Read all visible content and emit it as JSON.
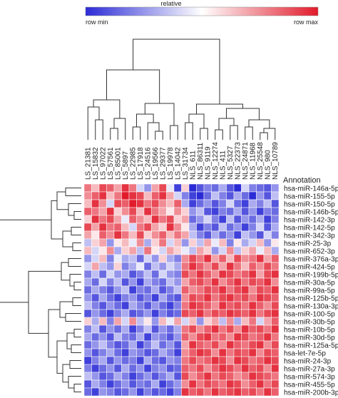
{
  "colorbar": {
    "title": "relative",
    "min_label": "row min",
    "max_label": "row max",
    "low_color": "#2b2bd6",
    "mid_color": "#ffffff",
    "high_color": "#e11b2b"
  },
  "chart_data": {
    "type": "heatmap",
    "title": "",
    "annotation_label": "Annotation",
    "columns": [
      "LS_21381",
      "LS_15832",
      "LS_97022",
      "LS_57561",
      "LS_85001",
      "LS_5897",
      "LS_22985",
      "LS_17918",
      "LS_24516",
      "LS_19566",
      "LS_29377",
      "LS_19978",
      "LS_14042",
      "LS_31734",
      "NLS_611",
      "NLS_86311",
      "NLS_9119",
      "NLS_12274",
      "NLS_411",
      "NLS_5327",
      "NLS_22373",
      "NLS_24871",
      "NLS_11968",
      "NLS_25548",
      "NLS_980",
      "NLS_10789"
    ],
    "rows": [
      "hsa-miR-146a-5p",
      "hsa-miR-155-5p",
      "hsa-miR-150-5p",
      "hsa-miR-146b-5p",
      "hsa-miR-142-3p",
      "hsa-miR-142-5p",
      "hsa-miR-342-3p",
      "hsa-miR-25-3p",
      "hsa-miR-652-3p",
      "hsa-miR-376a-3p",
      "hsa-miR-424-5p",
      "hsa-miR-199b-5p",
      "hsa-miR-30a-5p",
      "hsa-miR-99a-5p",
      "hsa-miR-125b-5p",
      "hsa-miR-130a-3p",
      "hsa-miR-100-5p",
      "hsa-miR-30b-5p",
      "hsa-miR-10b-5p",
      "hsa-miR-30d-5p",
      "hsa-miR-125a-5p",
      "hsa-let-7e-5p",
      "hsa-miR-24-3p",
      "hsa-miR-27a-3p",
      "hsa-miR-574-3p",
      "hsa-miR-455-5p",
      "hsa-miR-200b-3p"
    ],
    "values": [
      [
        0.6,
        0.3,
        0.8,
        0.7,
        0.4,
        0.9,
        0.6,
        -0.2,
        -0.5,
        0.4,
        0.8,
        -0.1,
        -0.9,
        0.2,
        -1,
        -0.8,
        -0.6,
        -0.7,
        -0.4,
        -0.8,
        -1,
        -0.2,
        -0.6,
        -0.7,
        -0.8,
        -0.5
      ],
      [
        0.5,
        0.7,
        0.9,
        0.3,
        0.6,
        1,
        0.9,
        0.8,
        0.3,
        0.7,
        0.9,
        0.4,
        -0.2,
        -0.6,
        -0.9,
        -1,
        -0.7,
        -0.3,
        -0.6,
        -0.8,
        -0.4,
        -0.7,
        -1,
        -0.5,
        -0.8,
        -0.3
      ],
      [
        0.3,
        0.9,
        0.5,
        -0.2,
        0.8,
        0.7,
        1,
        0.9,
        0.6,
        0.8,
        0.5,
        0.3,
        0.7,
        -0.4,
        -0.9,
        -0.7,
        -0.5,
        -0.8,
        -0.6,
        -0.2,
        -0.7,
        -0.9,
        -0.4,
        -0.6,
        -0.3,
        -0.8
      ],
      [
        0.7,
        0.6,
        0.4,
        0.9,
        0.2,
        0.5,
        0.8,
        0.3,
        0.9,
        0.6,
        0.4,
        0.1,
        0.5,
        0.2,
        -0.5,
        -0.3,
        -0.8,
        -0.9,
        -0.6,
        -0.7,
        -0.4,
        -0.8,
        -0.5,
        -0.9,
        -0.6,
        -0.7
      ],
      [
        0.2,
        0.9,
        0.6,
        0.8,
        0.4,
        -0.1,
        0.7,
        0.5,
        0.3,
        0.9,
        0.6,
        0.8,
        0.2,
        0.4,
        -0.7,
        -0.5,
        -0.2,
        -0.6,
        -0.9,
        -0.3,
        -0.8,
        -0.5,
        -0.7,
        -0.4,
        -0.9,
        -0.6
      ],
      [
        0.8,
        0.4,
        0.9,
        0.6,
        0.7,
        0.3,
        -0.2,
        0.6,
        0.8,
        0.4,
        0.2,
        0.9,
        0.5,
        0.1,
        -0.4,
        -0.9,
        -0.6,
        -0.8,
        -0.3,
        -0.7,
        -0.5,
        -0.9,
        -0.6,
        -0.2,
        -0.8,
        -0.4
      ],
      [
        0.4,
        0.1,
        0.7,
        0.5,
        0.9,
        0.6,
        0.3,
        0.8,
        0.2,
        0.5,
        0.7,
        0.3,
        0.6,
        0.4,
        -0.3,
        -0.6,
        -0.8,
        -0.4,
        -0.7,
        -0.5,
        -0.9,
        -0.3,
        -0.5,
        -0.8,
        -0.2,
        -0.6
      ],
      [
        -0.3,
        0.2,
        0.4,
        -0.5,
        0.1,
        0.3,
        -0.1,
        0.5,
        -0.4,
        0.2,
        0.6,
        -0.2,
        0.3,
        -0.5,
        0.2,
        -0.3,
        0.4,
        -0.1,
        0.3,
        -0.6,
        0.1,
        -0.4,
        -0.2,
        0.3,
        -0.5,
        0.1
      ],
      [
        0.3,
        -0.2,
        0.1,
        0.5,
        -0.4,
        0.2,
        0.4,
        -0.3,
        0.6,
        0.1,
        -0.2,
        0.4,
        0.2,
        -0.1,
        -0.3,
        0.4,
        0.2,
        -0.5,
        -0.2,
        0.5,
        -0.3,
        0.2,
        0.4,
        -0.1,
        0.3,
        -0.4
      ],
      [
        -0.5,
        -0.2,
        0.3,
        -0.6,
        -0.1,
        -0.4,
        -0.3,
        -0.7,
        -0.2,
        -0.5,
        0.2,
        -0.4,
        -0.6,
        0.5,
        0.8,
        0.6,
        0.9,
        0.4,
        0.7,
        0.3,
        0.8,
        0.5,
        0.6,
        0.9,
        0.4,
        0.7
      ],
      [
        -0.2,
        0.4,
        -0.3,
        -0.5,
        0.2,
        -0.6,
        -0.4,
        -0.1,
        -0.7,
        -0.3,
        -0.5,
        -0.2,
        -0.4,
        0.6,
        0.9,
        0.7,
        0.5,
        0.8,
        0.4,
        0.9,
        0.6,
        0.3,
        0.7,
        0.5,
        0.8,
        0.6
      ],
      [
        -0.6,
        -0.3,
        -0.7,
        -0.2,
        -0.5,
        -0.4,
        -0.8,
        -0.6,
        -0.3,
        -0.7,
        -0.2,
        -0.5,
        -0.6,
        0.8,
        0.6,
        0.9,
        0.7,
        0.5,
        0.9,
        0.8,
        0.6,
        0.7,
        0.9,
        0.4,
        0.8,
        0.9
      ],
      [
        -0.4,
        -0.7,
        -0.2,
        -0.6,
        -0.3,
        -0.8,
        -0.5,
        -0.9,
        -0.4,
        -0.6,
        -0.7,
        -0.3,
        -0.5,
        0.4,
        0.7,
        0.8,
        0.6,
        0.9,
        0.5,
        0.7,
        0.9,
        0.6,
        0.8,
        0.7,
        0.9,
        0.5
      ],
      [
        -0.7,
        -0.4,
        -0.6,
        -0.8,
        -0.5,
        -0.3,
        -0.9,
        -0.6,
        -0.7,
        -0.4,
        -0.8,
        -0.6,
        -0.3,
        0.7,
        0.5,
        0.6,
        0.8,
        0.7,
        0.9,
        0.6,
        0.8,
        0.9,
        0.5,
        0.8,
        0.7,
        0.9
      ],
      [
        -0.5,
        -0.8,
        -0.4,
        -0.7,
        -0.9,
        -0.6,
        -0.5,
        -0.8,
        -0.6,
        -0.9,
        -0.4,
        -0.7,
        -0.8,
        0.5,
        0.8,
        0.7,
        0.9,
        0.6,
        0.8,
        0.9,
        0.7,
        0.8,
        0.6,
        0.9,
        0.8,
        0.7
      ],
      [
        -0.3,
        -0.6,
        -0.8,
        -0.5,
        -0.7,
        -0.9,
        -0.4,
        -0.6,
        -0.8,
        -0.5,
        -0.7,
        -0.9,
        -0.6,
        0.6,
        0.9,
        0.8,
        0.7,
        0.5,
        0.9,
        0.7,
        0.8,
        0.6,
        0.9,
        0.7,
        0.5,
        0.8
      ],
      [
        -0.8,
        -0.5,
        -0.7,
        -0.9,
        -0.6,
        -0.4,
        -0.8,
        -0.7,
        -0.5,
        -0.9,
        -0.6,
        -0.8,
        -0.7,
        0.8,
        0.7,
        0.9,
        0.6,
        0.8,
        0.7,
        0.9,
        0.8,
        0.7,
        0.9,
        0.6,
        0.8,
        0.9
      ],
      [
        0.2,
        -0.4,
        0.3,
        -0.6,
        0.4,
        -0.2,
        0.5,
        -0.3,
        0.1,
        -0.5,
        0.3,
        -0.1,
        0.4,
        -0.2,
        0.3,
        -0.5,
        0.2,
        0.4,
        -0.3,
        0.5,
        -0.4,
        0.3,
        0.6,
        -0.2,
        0.4,
        0.7
      ],
      [
        -0.6,
        -0.3,
        -0.8,
        -0.5,
        -0.7,
        -0.4,
        -0.9,
        -0.6,
        -0.3,
        -0.8,
        -0.5,
        -0.7,
        -0.4,
        0.6,
        0.8,
        0.5,
        0.7,
        0.9,
        0.6,
        0.8,
        0.5,
        0.9,
        0.7,
        0.8,
        0.6,
        0.9
      ],
      [
        -0.4,
        -0.7,
        -0.5,
        -0.8,
        -0.3,
        -0.6,
        -0.7,
        -0.4,
        -0.9,
        -0.5,
        -0.6,
        -0.8,
        -0.5,
        0.7,
        0.5,
        0.8,
        0.9,
        0.6,
        0.7,
        0.5,
        0.9,
        0.8,
        0.6,
        0.7,
        0.9,
        0.6
      ],
      [
        -0.7,
        -0.5,
        -0.3,
        -0.6,
        -0.8,
        -0.7,
        -0.4,
        -0.9,
        -0.6,
        -0.3,
        -0.7,
        -0.5,
        -0.8,
        0.4,
        0.9,
        0.7,
        0.6,
        0.8,
        0.5,
        0.9,
        0.7,
        0.6,
        0.8,
        0.9,
        0.5,
        0.8
      ],
      [
        -0.5,
        -0.8,
        -0.6,
        -0.4,
        -0.7,
        -0.9,
        -0.5,
        -0.6,
        -0.8,
        -0.7,
        -0.4,
        -0.6,
        -0.9,
        0.5,
        0.7,
        0.9,
        0.8,
        0.5,
        0.9,
        0.6,
        0.8,
        0.7,
        0.9,
        0.5,
        0.8,
        0.7
      ],
      [
        -0.9,
        -0.6,
        -0.4,
        -0.8,
        -0.5,
        -0.7,
        -0.6,
        -0.9,
        -0.4,
        -0.7,
        -0.8,
        -0.5,
        -0.6,
        0.6,
        0.8,
        0.6,
        0.7,
        0.9,
        0.8,
        0.5,
        0.9,
        0.8,
        0.6,
        0.7,
        0.9,
        0.8
      ],
      [
        -0.6,
        -0.9,
        -0.7,
        -0.5,
        -0.8,
        -0.4,
        -0.7,
        -0.5,
        -0.9,
        -0.6,
        -0.5,
        -0.8,
        -0.7,
        0.7,
        0.6,
        0.8,
        0.5,
        0.7,
        0.9,
        0.8,
        0.6,
        0.9,
        0.7,
        0.8,
        0.5,
        0.9
      ],
      [
        -0.3,
        -0.5,
        -0.8,
        -0.7,
        -0.4,
        -0.6,
        -0.9,
        -0.7,
        -0.5,
        -0.8,
        -0.6,
        -0.4,
        -0.8,
        0.8,
        0.5,
        0.7,
        0.9,
        0.6,
        0.8,
        0.7,
        0.5,
        0.6,
        0.9,
        0.8,
        0.7,
        0.6
      ],
      [
        -0.8,
        -0.4,
        -0.6,
        -0.9,
        -0.7,
        -0.5,
        -0.8,
        -0.6,
        -0.7,
        -0.4,
        -0.9,
        -0.7,
        -0.5,
        0.5,
        0.9,
        0.6,
        0.8,
        0.7,
        0.6,
        0.9,
        0.8,
        0.5,
        0.7,
        0.9,
        0.6,
        0.8
      ],
      [
        -0.7,
        -0.9,
        -0.5,
        -0.6,
        -0.8,
        -0.7,
        -0.5,
        -0.9,
        -0.6,
        -0.8,
        -0.7,
        -0.9,
        -0.6,
        0.9,
        0.7,
        0.8,
        0.6,
        0.9,
        0.7,
        0.8,
        0.9,
        0.7,
        0.8,
        0.6,
        0.9,
        0.7
      ]
    ]
  }
}
